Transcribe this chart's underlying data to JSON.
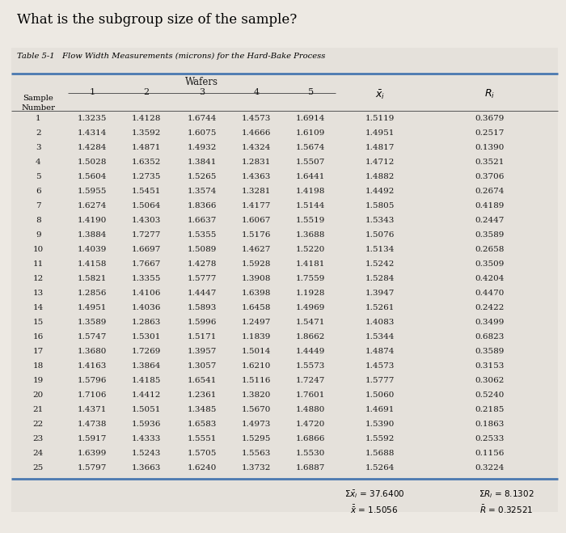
{
  "title": "What is the subgroup size of the sample?",
  "table_title": "Table 5-1   Flow Width Measurements (microns) for the Hard-Bake Process",
  "wafers_label": "Wafers",
  "rows": [
    [
      1,
      1.3235,
      1.4128,
      1.6744,
      1.4573,
      1.6914,
      1.5119,
      0.3679
    ],
    [
      2,
      1.4314,
      1.3592,
      1.6075,
      1.4666,
      1.6109,
      1.4951,
      0.2517
    ],
    [
      3,
      1.4284,
      1.4871,
      1.4932,
      1.4324,
      1.5674,
      1.4817,
      0.139
    ],
    [
      4,
      1.5028,
      1.6352,
      1.3841,
      1.2831,
      1.5507,
      1.4712,
      0.3521
    ],
    [
      5,
      1.5604,
      1.2735,
      1.5265,
      1.4363,
      1.6441,
      1.4882,
      0.3706
    ],
    [
      6,
      1.5955,
      1.5451,
      1.3574,
      1.3281,
      1.4198,
      1.4492,
      0.2674
    ],
    [
      7,
      1.6274,
      1.5064,
      1.8366,
      1.4177,
      1.5144,
      1.5805,
      0.4189
    ],
    [
      8,
      1.419,
      1.4303,
      1.6637,
      1.6067,
      1.5519,
      1.5343,
      0.2447
    ],
    [
      9,
      1.3884,
      1.7277,
      1.5355,
      1.5176,
      1.3688,
      1.5076,
      0.3589
    ],
    [
      10,
      1.4039,
      1.6697,
      1.5089,
      1.4627,
      1.522,
      1.5134,
      0.2658
    ],
    [
      11,
      1.4158,
      1.7667,
      1.4278,
      1.5928,
      1.4181,
      1.5242,
      0.3509
    ],
    [
      12,
      1.5821,
      1.3355,
      1.5777,
      1.3908,
      1.7559,
      1.5284,
      0.4204
    ],
    [
      13,
      1.2856,
      1.4106,
      1.4447,
      1.6398,
      1.1928,
      1.3947,
      0.447
    ],
    [
      14,
      1.4951,
      1.4036,
      1.5893,
      1.6458,
      1.4969,
      1.5261,
      0.2422
    ],
    [
      15,
      1.3589,
      1.2863,
      1.5996,
      1.2497,
      1.5471,
      1.4083,
      0.3499
    ],
    [
      16,
      1.5747,
      1.5301,
      1.5171,
      1.1839,
      1.8662,
      1.5344,
      0.6823
    ],
    [
      17,
      1.368,
      1.7269,
      1.3957,
      1.5014,
      1.4449,
      1.4874,
      0.3589
    ],
    [
      18,
      1.4163,
      1.3864,
      1.3057,
      1.621,
      1.5573,
      1.4573,
      0.3153
    ],
    [
      19,
      1.5796,
      1.4185,
      1.6541,
      1.5116,
      1.7247,
      1.5777,
      0.3062
    ],
    [
      20,
      1.7106,
      1.4412,
      1.2361,
      1.382,
      1.7601,
      1.506,
      0.524
    ],
    [
      21,
      1.4371,
      1.5051,
      1.3485,
      1.567,
      1.488,
      1.4691,
      0.2185
    ],
    [
      22,
      1.4738,
      1.5936,
      1.6583,
      1.4973,
      1.472,
      1.539,
      0.1863
    ],
    [
      23,
      1.5917,
      1.4333,
      1.5551,
      1.5295,
      1.6866,
      1.5592,
      0.2533
    ],
    [
      24,
      1.6399,
      1.5243,
      1.5705,
      1.5563,
      1.553,
      1.5688,
      0.1156
    ],
    [
      25,
      1.5797,
      1.3663,
      1.624,
      1.3732,
      1.6887,
      1.5264,
      0.3224
    ]
  ],
  "sum_xbar": "37.6400",
  "sum_R": "8.1302",
  "xdbar": "1.5056",
  "Rbar": "0.32521",
  "bg_color": "#ede9e3",
  "table_bg": "#e5e1db",
  "border_color": "#4a78b0",
  "title_color": "#000000",
  "text_color": "#1a1a1a"
}
